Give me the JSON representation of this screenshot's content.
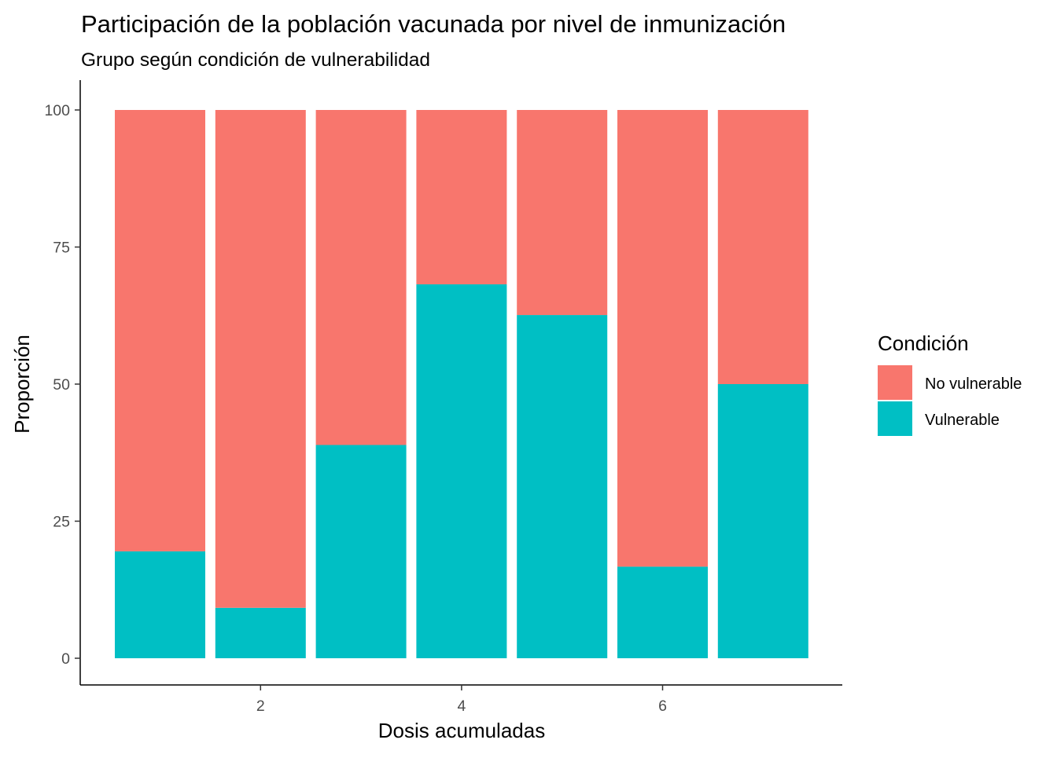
{
  "chart_data": {
    "type": "bar",
    "stacked": true,
    "title": "Participación de la población vacunada por nivel de inmunización",
    "subtitle": "Grupo según condición de vulnerabilidad",
    "xlabel": "Dosis acumuladas",
    "ylabel": "Proporción",
    "x": [
      1,
      2,
      3,
      4,
      5,
      6,
      7
    ],
    "xlim": [
      0.5,
      7.5
    ],
    "x_ticks": [
      "2",
      "4",
      "6"
    ],
    "ylim": [
      0,
      100
    ],
    "y_ticks": [
      "0",
      "25",
      "50",
      "75",
      "100"
    ],
    "grid": false,
    "legend": {
      "title": "Condición",
      "position": "right"
    },
    "series": [
      {
        "name": "Vulnerable",
        "color": "#00BFC4",
        "values": [
          19.5,
          9.2,
          38.9,
          68.2,
          62.6,
          16.7,
          50.0
        ]
      },
      {
        "name": "No vulnerable",
        "color": "#F8766D",
        "values": [
          80.5,
          90.8,
          61.1,
          31.8,
          37.4,
          83.3,
          50.0
        ]
      }
    ]
  }
}
